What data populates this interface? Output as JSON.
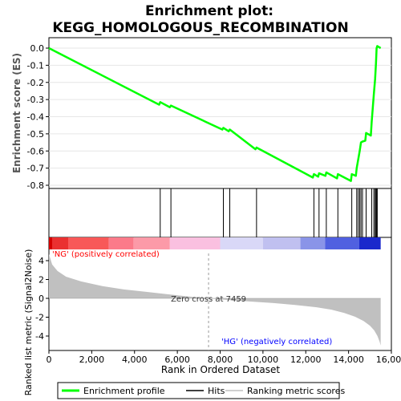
{
  "chart_data": {
    "type": "line",
    "title_line1": "Enrichment plot:",
    "title_line2": "KEGG_HOMOLOGOUS_RECOMBINATION",
    "es_ylabel": "Enrichment score (ES)",
    "metric_ylabel_line1": "Ranked list metric (Signal2Noise)",
    "xlabel": "Rank in Ordered Dataset",
    "es_ylim": [
      -0.8,
      0.05
    ],
    "es_yticks": [
      0.0,
      -0.1,
      -0.2,
      -0.3,
      -0.4,
      -0.5,
      -0.6,
      -0.7,
      -0.8
    ],
    "es_ytick_labels": [
      "0.0",
      "-0.1",
      "-0.2",
      "-0.3",
      "-0.4",
      "-0.5",
      "-0.6",
      "-0.7",
      "-0.8"
    ],
    "xlim": [
      0,
      16000
    ],
    "xticks": [
      0,
      2000,
      4000,
      6000,
      8000,
      10000,
      12000,
      14000,
      16000
    ],
    "xtick_labels": [
      "0",
      "2,000",
      "4,000",
      "6,000",
      "8,000",
      "10,000",
      "12,000",
      "14,000",
      "16,000"
    ],
    "metric_ylim": [
      -5,
      5
    ],
    "metric_yticks": [
      4,
      2,
      0,
      -2,
      -4
    ],
    "metric_ytick_labels": [
      "4",
      "2",
      "0",
      "-2",
      "-4"
    ],
    "n_genes": 15500,
    "zero_cross": 7459,
    "zero_cross_label": "Zero cross at 7459",
    "pos_label": "'NG' (positively correlated)",
    "neg_label": "'HG' (negatively correlated)",
    "hits": [
      5200,
      5700,
      8150,
      8450,
      9700,
      12380,
      12620,
      12960,
      13500,
      14150,
      14380,
      14450,
      14520,
      14580,
      14650,
      14820,
      15080,
      15180,
      15240,
      15280,
      15310,
      15340
    ],
    "es_curve": {
      "x": [
        0,
        5150,
        5200,
        5650,
        5700,
        8100,
        8150,
        8400,
        8450,
        9650,
        9700,
        12330,
        12380,
        12580,
        12620,
        12920,
        12960,
        13460,
        13500,
        14110,
        14150,
        14340,
        14380,
        14450,
        14520,
        14580,
        14650,
        14780,
        14820,
        15040,
        15080,
        15180,
        15240,
        15280,
        15310,
        15340,
        15500
      ],
      "es": [
        0.0,
        -0.33,
        -0.315,
        -0.345,
        -0.335,
        -0.475,
        -0.465,
        -0.485,
        -0.475,
        -0.59,
        -0.58,
        -0.755,
        -0.735,
        -0.75,
        -0.73,
        -0.745,
        -0.725,
        -0.76,
        -0.735,
        -0.775,
        -0.735,
        -0.745,
        -0.7,
        -0.65,
        -0.6,
        -0.55,
        -0.545,
        -0.54,
        -0.495,
        -0.51,
        -0.43,
        -0.27,
        -0.18,
        -0.09,
        0.0,
        0.012,
        0.0
      ]
    },
    "metric_profile": {
      "x": [
        0,
        150,
        400,
        800,
        1500,
        2500,
        3500,
        4500,
        5500,
        6500,
        7459,
        8500,
        9500,
        10500,
        11500,
        12500,
        13200,
        13800,
        14300,
        14700,
        15000,
        15200,
        15350,
        15450,
        15500
      ],
      "y": [
        4.7,
        3.6,
        2.9,
        2.3,
        1.8,
        1.3,
        0.95,
        0.7,
        0.45,
        0.2,
        0.0,
        -0.2,
        -0.35,
        -0.5,
        -0.7,
        -0.95,
        -1.2,
        -1.55,
        -1.95,
        -2.4,
        -2.9,
        -3.4,
        -4.0,
        -4.6,
        -5.0
      ]
    },
    "color_band": [
      {
        "from": 0,
        "to": 150,
        "color": "#d40000"
      },
      {
        "from": 150,
        "to": 900,
        "color": "#ea3030"
      },
      {
        "from": 900,
        "to": 2800,
        "color": "#f85858"
      },
      {
        "from": 2800,
        "to": 3950,
        "color": "#fb7a8a"
      },
      {
        "from": 3950,
        "to": 5650,
        "color": "#fc9aa8"
      },
      {
        "from": 5650,
        "to": 8000,
        "color": "#fac0e0"
      },
      {
        "from": 8000,
        "to": 10000,
        "color": "#d9d8f7"
      },
      {
        "from": 10000,
        "to": 11750,
        "color": "#c0c0f0"
      },
      {
        "from": 11750,
        "to": 12900,
        "color": "#8a94e8"
      },
      {
        "from": 12900,
        "to": 14500,
        "color": "#5060e0"
      },
      {
        "from": 14500,
        "to": 15500,
        "color": "#1a28cc"
      }
    ],
    "colors": {
      "es_line": "#00ff00",
      "hits": "#000000",
      "metric_fill": "#c0c0c0",
      "pos_label": "#ff0000",
      "neg_label": "#0000ff",
      "zero_line": "#999999"
    },
    "legend": {
      "items": [
        {
          "label": "Enrichment profile",
          "color": "#00ff00",
          "kind": "thick-line"
        },
        {
          "label": "Hits",
          "color": "#000000",
          "kind": "line"
        },
        {
          "label": "Ranking metric scores",
          "color": "#c0c0c0",
          "kind": "line"
        }
      ],
      "placement": "bottom"
    }
  }
}
